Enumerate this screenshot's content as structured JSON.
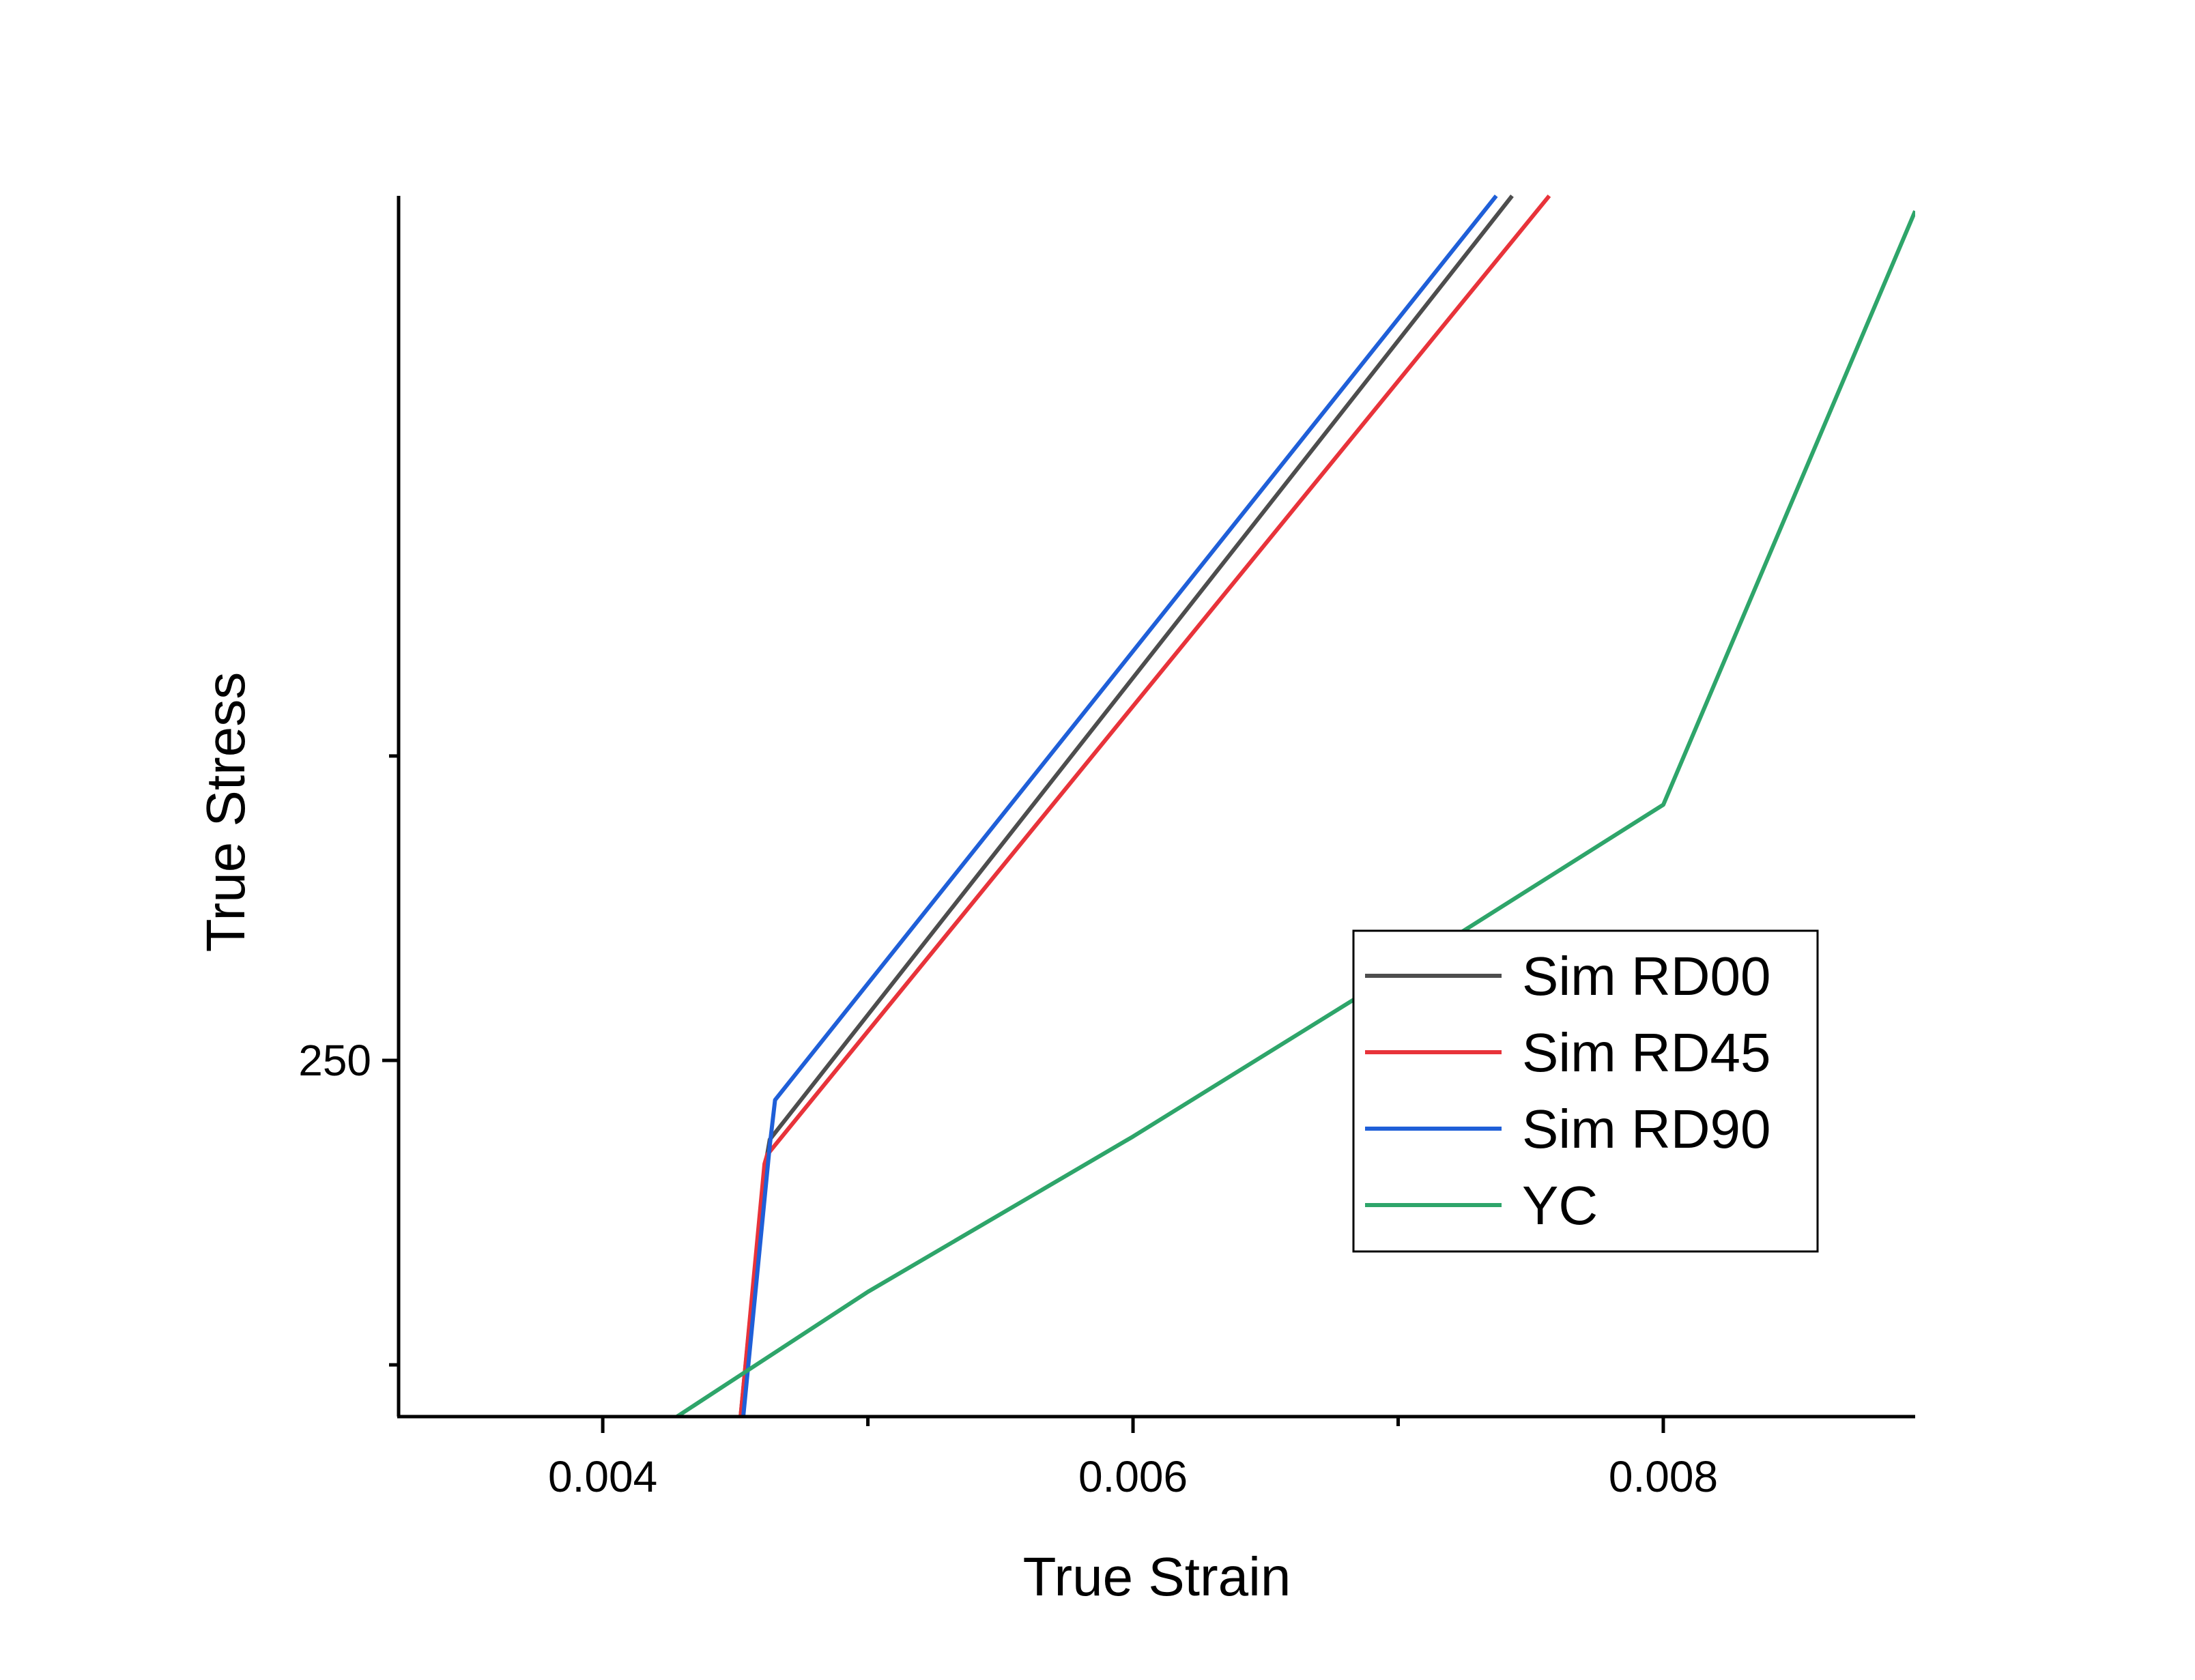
{
  "chart_data": {
    "type": "line",
    "title": "",
    "xlabel": "True Strain",
    "ylabel": "True Stress",
    "xlim": [
      0.00323,
      0.00895
    ],
    "ylim": [
      191.5,
      392
    ],
    "x_ticks": [
      {
        "value": 0.004,
        "label": "0.004"
      },
      {
        "value": 0.005,
        "label": ""
      },
      {
        "value": 0.006,
        "label": "0.006"
      },
      {
        "value": 0.007,
        "label": ""
      },
      {
        "value": 0.008,
        "label": "0.008"
      }
    ],
    "y_ticks": [
      {
        "value": 200,
        "label": ""
      },
      {
        "value": 250,
        "label": "250"
      },
      {
        "value": 300,
        "label": ""
      }
    ],
    "grid": false,
    "legend_position": "bottom-right",
    "series": [
      {
        "name": "Sim RD00",
        "color": "#4d4d4d",
        "x": [
          0.00452,
          0.00461,
          0.00463,
          0.00743
        ],
        "y": [
          191.5,
          232,
          237,
          392
        ]
      },
      {
        "name": "Sim RD45",
        "color": "#e8333a",
        "x": [
          0.00452,
          0.00461,
          0.00462,
          0.00757
        ],
        "y": [
          191.5,
          233,
          234.5,
          392
        ]
      },
      {
        "name": "Sim RD90",
        "color": "#1f5fd8",
        "x": [
          0.00453,
          0.00463,
          0.00465,
          0.00737
        ],
        "y": [
          191.5,
          236,
          243.5,
          392
        ]
      },
      {
        "name": "YC",
        "color": "#2ea56a",
        "x": [
          0.00428,
          0.005,
          0.006,
          0.007,
          0.008,
          0.00895
        ],
        "y": [
          191.5,
          212,
          237.5,
          264.5,
          292,
          389.5
        ]
      }
    ]
  }
}
